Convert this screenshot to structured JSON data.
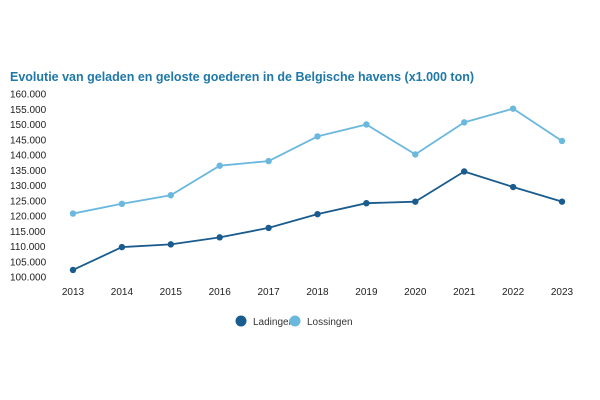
{
  "chart_data": {
    "type": "line",
    "title": "Evolutie van geladen en geloste goederen in de Belgische havens (x1.000 ton)",
    "xlabel": "",
    "ylabel": "",
    "categories": [
      "2013",
      "2014",
      "2015",
      "2016",
      "2017",
      "2018",
      "2019",
      "2020",
      "2021",
      "2022",
      "2023"
    ],
    "ylim": [
      100000,
      160000
    ],
    "yticks": [
      100000,
      105000,
      110000,
      115000,
      120000,
      125000,
      130000,
      135000,
      140000,
      145000,
      150000,
      155000,
      160000
    ],
    "ytick_labels": [
      "100.000",
      "105.000",
      "110.000",
      "115.000",
      "120.000",
      "125.000",
      "130.000",
      "135.000",
      "140.000",
      "145.000",
      "150.000",
      "155.000",
      "160.000"
    ],
    "grid": false,
    "legend_position": "bottom",
    "series": [
      {
        "name": "Ladingen",
        "color": "#1a5c8e",
        "values": [
          102300,
          109800,
          110700,
          113000,
          116100,
          120600,
          124200,
          124700,
          134600,
          129500,
          124700
        ]
      },
      {
        "name": "Lossingen",
        "color": "#6bb8de",
        "values": [
          120800,
          124000,
          126800,
          136500,
          138000,
          146100,
          150000,
          140200,
          150700,
          155200,
          144600
        ]
      }
    ]
  }
}
